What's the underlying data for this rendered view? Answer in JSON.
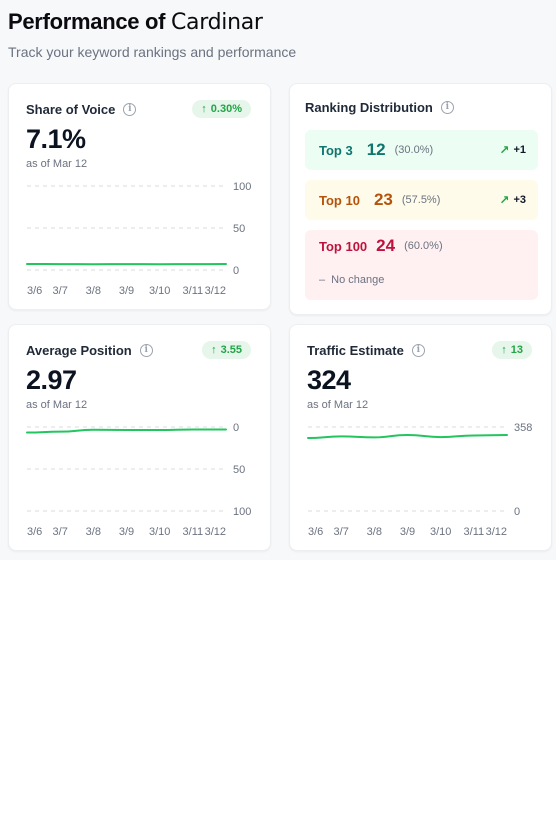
{
  "header": {
    "title_prefix": "Performance of ",
    "title_brand": "Cardinar",
    "subtitle": "Track your keyword rankings and performance"
  },
  "colors": {
    "accent_green": "#22c55e",
    "top3": "#0f766e",
    "top10": "#b45309",
    "top100": "#be123c"
  },
  "share_of_voice": {
    "title": "Share of Voice",
    "badge": "0.30%",
    "value": "7.1%",
    "as_of": "as of Mar 12",
    "chart_data": {
      "type": "line",
      "x": [
        "3/6",
        "3/7",
        "3/8",
        "3/9",
        "3/10",
        "3/11",
        "3/12"
      ],
      "y": [
        7.2,
        7.0,
        6.9,
        7.0,
        6.9,
        7.0,
        7.1
      ],
      "ylim": [
        0,
        100
      ],
      "ticks": [
        "100",
        "50",
        "0"
      ],
      "grid": true
    }
  },
  "ranking_distribution": {
    "title": "Ranking Distribution",
    "rows": [
      {
        "label": "Top 3",
        "count": "12",
        "pct": "(30.0%)",
        "change": "+1",
        "bg": "#ecfdf3",
        "color": "#0f766e"
      },
      {
        "label": "Top 10",
        "count": "23",
        "pct": "(57.5%)",
        "change": "+3",
        "bg": "#fffbeb",
        "color": "#b45309"
      },
      {
        "label": "Top 100",
        "count": "24",
        "pct": "(60.0%)",
        "change_text": "No change",
        "bg": "#fff1f2",
        "color": "#be123c"
      }
    ]
  },
  "average_position": {
    "title": "Average Position",
    "badge": "3.55",
    "value": "2.97",
    "as_of": "as of Mar 12",
    "chart_data": {
      "type": "line",
      "x": [
        "3/6",
        "3/7",
        "3/8",
        "3/9",
        "3/10",
        "3/11",
        "3/12"
      ],
      "y": [
        6.6,
        5.5,
        3.3,
        3.5,
        3.6,
        3.0,
        2.97
      ],
      "ylim": [
        0,
        100
      ],
      "inverted": true,
      "ticks": [
        "0",
        "50",
        "100"
      ],
      "grid": true
    }
  },
  "traffic_estimate": {
    "title": "Traffic Estimate",
    "badge": "13",
    "value": "324",
    "as_of": "as of Mar 12",
    "chart_data": {
      "type": "line",
      "x": [
        "3/6",
        "3/7",
        "3/8",
        "3/9",
        "3/10",
        "3/11",
        "3/12"
      ],
      "y": [
        311,
        318,
        314,
        324,
        315,
        322,
        324
      ],
      "ylim": [
        0,
        358
      ],
      "ticks": [
        "358",
        "0"
      ],
      "grid": true
    }
  }
}
